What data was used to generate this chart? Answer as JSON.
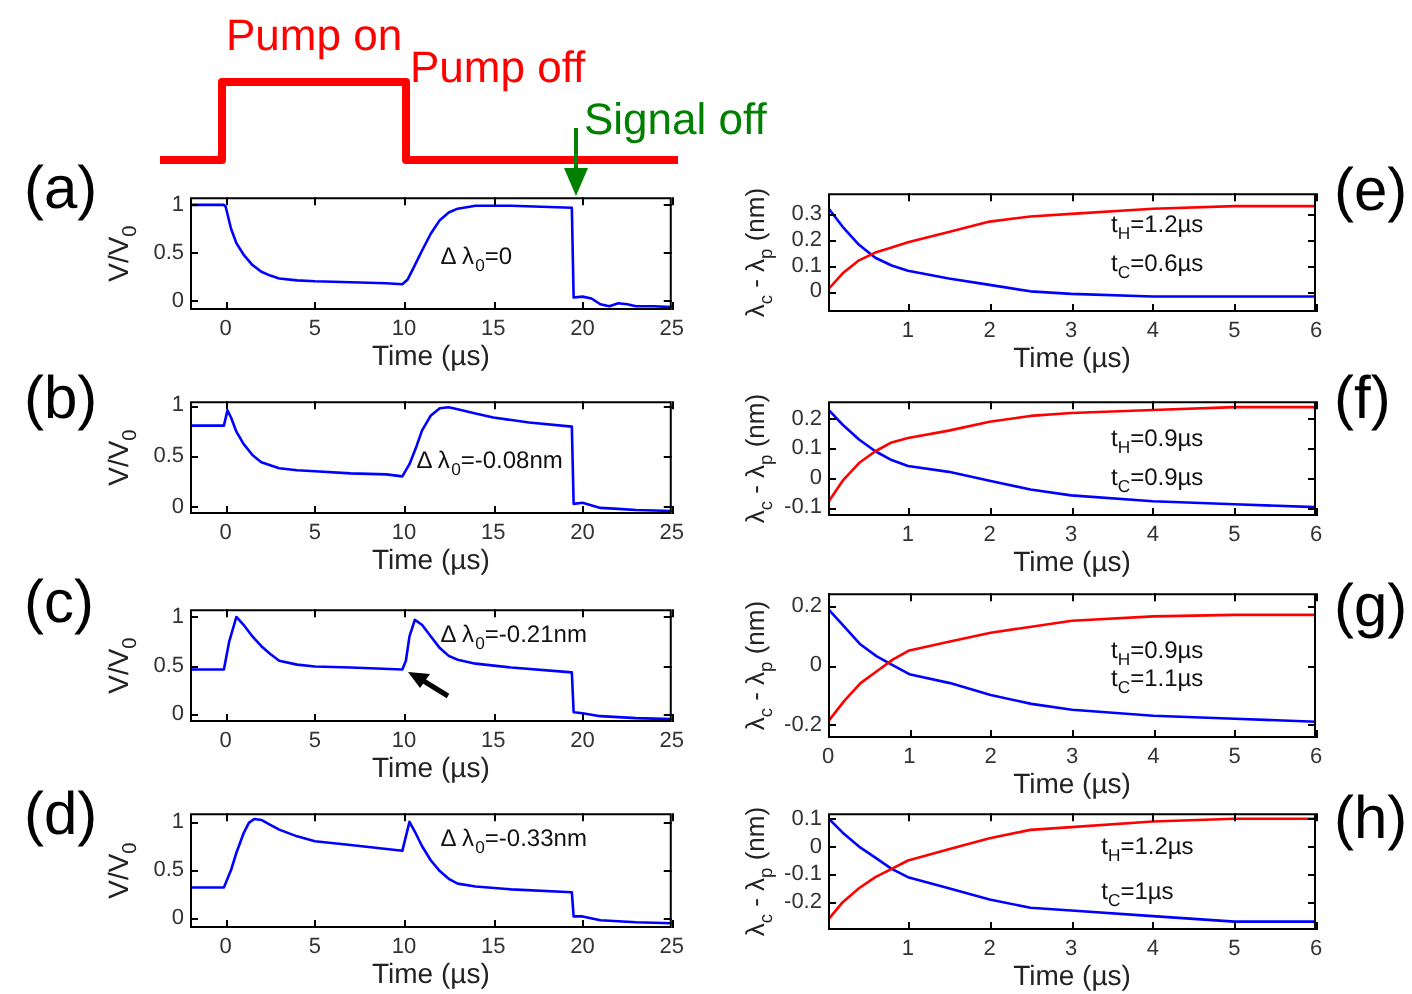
{
  "chart_data": [
    {
      "type": "other",
      "annotations": [
        "Pump on",
        "Pump off",
        "Signal off"
      ]
    },
    {
      "type": "line",
      "title": "(a)",
      "xlabel": "Time (µs)",
      "ylabel": "V/V$_{0}$",
      "xlim": [
        -2,
        25
      ],
      "ylim": [
        -0.1,
        1.08
      ],
      "xticks": [
        0,
        5,
        10,
        15,
        20,
        25
      ],
      "yticks": [
        0,
        0.5,
        1
      ],
      "x": [
        -2,
        -0.1,
        0,
        0.3,
        0.6,
        1,
        1.5,
        2,
        2.5,
        3,
        4,
        5,
        7,
        9,
        9.9,
        10.2,
        10.5,
        11,
        11.5,
        12,
        12.5,
        13,
        14,
        16,
        19.4,
        19.5,
        20,
        20.5,
        21,
        21.5,
        22,
        22.5,
        23,
        24,
        25
      ],
      "series": [
        {
          "color": "#0000ff",
          "values": [
            1,
            1,
            0.98,
            0.75,
            0.6,
            0.48,
            0.37,
            0.3,
            0.26,
            0.23,
            0.21,
            0.2,
            0.19,
            0.18,
            0.17,
            0.22,
            0.33,
            0.52,
            0.7,
            0.84,
            0.92,
            0.96,
            0.99,
            0.99,
            0.97,
            0.03,
            0.04,
            0.02,
            -0.04,
            -0.06,
            -0.03,
            -0.04,
            -0.06,
            -0.06,
            -0.07
          ]
        }
      ],
      "annotations": [
        "Δ λ$_{0}$=0"
      ]
    },
    {
      "type": "line",
      "title": "(b)",
      "xlabel": "Time (µs)",
      "ylabel": "V/V$_{0}$",
      "xlim": [
        -2,
        25
      ],
      "ylim": [
        -0.07,
        1.04
      ],
      "xticks": [
        0,
        5,
        10,
        15,
        20,
        25
      ],
      "yticks": [
        0,
        0.5,
        1
      ],
      "x": [
        -2,
        -0.1,
        0.1,
        0.3,
        0.6,
        1,
        1.5,
        2,
        3,
        4,
        5,
        7,
        9,
        9.9,
        10.3,
        10.7,
        11,
        11.5,
        12,
        12.5,
        13,
        14,
        15,
        17,
        19.4,
        19.5,
        20,
        21,
        22,
        23,
        25
      ],
      "series": [
        {
          "color": "#0000ff",
          "values": [
            0.8,
            0.8,
            0.95,
            0.88,
            0.74,
            0.62,
            0.51,
            0.44,
            0.38,
            0.36,
            0.35,
            0.33,
            0.32,
            0.3,
            0.42,
            0.6,
            0.75,
            0.9,
            0.97,
            0.98,
            0.96,
            0.92,
            0.88,
            0.83,
            0.79,
            0.03,
            0.04,
            -0.01,
            -0.02,
            -0.03,
            -0.04
          ]
        }
      ],
      "annotations": [
        "Δ λ$_{0}$=-0.08nm"
      ]
    },
    {
      "type": "line",
      "title": "(c)",
      "xlabel": "Time (µs)",
      "ylabel": "V/V$_{0}$",
      "xlim": [
        -2,
        25
      ],
      "ylim": [
        -0.08,
        1.08
      ],
      "xticks": [
        0,
        5,
        10,
        15,
        20,
        25
      ],
      "yticks": [
        0,
        0.5,
        1
      ],
      "x": [
        -2,
        -0.1,
        0.2,
        0.6,
        1,
        1.5,
        2,
        2.5,
        3,
        4,
        5,
        7,
        9.9,
        10.1,
        10.3,
        10.6,
        11,
        11.5,
        12,
        12.5,
        13,
        14,
        16,
        19.4,
        19.5,
        20,
        21,
        22,
        23,
        25
      ],
      "series": [
        {
          "color": "#0000ff",
          "values": [
            0.46,
            0.46,
            0.75,
            1.0,
            0.92,
            0.8,
            0.7,
            0.62,
            0.55,
            0.51,
            0.49,
            0.48,
            0.46,
            0.55,
            0.8,
            0.97,
            0.92,
            0.8,
            0.68,
            0.6,
            0.56,
            0.52,
            0.48,
            0.43,
            0.02,
            0.01,
            -0.02,
            -0.03,
            -0.04,
            -0.05
          ]
        }
      ],
      "annotations": [
        "Δ λ$_{0}$=-0.21nm"
      ]
    },
    {
      "type": "line",
      "title": "(d)",
      "xlabel": "Time (µs)",
      "ylabel": "V/V$_{0}$",
      "xlim": [
        -2,
        25
      ],
      "ylim": [
        -0.1,
        1.09
      ],
      "xticks": [
        0,
        5,
        10,
        15,
        20,
        25
      ],
      "yticks": [
        0,
        0.5,
        1
      ],
      "x": [
        -2,
        -0.1,
        0.3,
        0.6,
        1,
        1.3,
        1.6,
        2,
        2.5,
        3,
        4,
        5,
        7,
        9.9,
        10.1,
        10.3,
        10.6,
        11,
        11.5,
        12,
        12.5,
        13,
        14,
        16,
        19.4,
        19.5,
        20,
        21,
        23,
        25
      ],
      "series": [
        {
          "color": "#0000ff",
          "values": [
            0.32,
            0.32,
            0.5,
            0.68,
            0.88,
            0.99,
            1.03,
            1.02,
            0.97,
            0.92,
            0.85,
            0.8,
            0.76,
            0.7,
            0.85,
            1.0,
            0.9,
            0.75,
            0.6,
            0.49,
            0.41,
            0.36,
            0.33,
            0.3,
            0.27,
            0.02,
            0.02,
            -0.02,
            -0.04,
            -0.05
          ]
        }
      ],
      "annotations": [
        "Δ λ$_{0}$=-0.33nm"
      ]
    },
    {
      "type": "line",
      "title": "(e)",
      "xlabel": "Time (µs)",
      "ylabel": "λ$_{c}$ - λ$_{p}$ (nm)",
      "xlim": [
        0.02,
        6
      ],
      "ylim": [
        -0.08,
        0.38
      ],
      "xticks": [
        1,
        2,
        3,
        4,
        5,
        6
      ],
      "yticks": [
        0,
        0.1,
        0.2,
        0.3
      ],
      "x": [
        0.03,
        0.2,
        0.4,
        0.6,
        0.8,
        1,
        1.5,
        2,
        2.5,
        3,
        4,
        5,
        6
      ],
      "series": [
        {
          "color": "#ff0000",
          "values": [
            0.01,
            0.07,
            0.12,
            0.15,
            0.17,
            0.19,
            0.23,
            0.27,
            0.29,
            0.3,
            0.32,
            0.33,
            0.33
          ]
        },
        {
          "color": "#0000ff",
          "values": [
            0.32,
            0.25,
            0.18,
            0.13,
            0.1,
            0.08,
            0.05,
            0.025,
            0.0,
            -0.01,
            -0.02,
            -0.02,
            -0.02
          ]
        }
      ],
      "annotations": [
        "t$_{H}$=1.2µs",
        "t$_{C}$=0.6µs"
      ]
    },
    {
      "type": "line",
      "title": "(f)",
      "xlabel": "Time (µs)",
      "ylabel": "λ$_{c}$ - λ$_{p}$ (nm)",
      "xlim": [
        0.02,
        6
      ],
      "ylim": [
        -0.13,
        0.26
      ],
      "xticks": [
        1,
        2,
        3,
        4,
        5,
        6
      ],
      "yticks": [
        -0.1,
        0,
        0.1,
        0.2
      ],
      "x": [
        0.03,
        0.2,
        0.4,
        0.6,
        0.8,
        1,
        1.5,
        2,
        2.5,
        3,
        4,
        5,
        6
      ],
      "series": [
        {
          "color": "#ff0000",
          "values": [
            -0.08,
            -0.01,
            0.05,
            0.09,
            0.12,
            0.135,
            0.16,
            0.19,
            0.21,
            0.22,
            0.23,
            0.24,
            0.24
          ]
        },
        {
          "color": "#0000ff",
          "values": [
            0.23,
            0.18,
            0.13,
            0.09,
            0.06,
            0.04,
            0.02,
            -0.01,
            -0.04,
            -0.06,
            -0.08,
            -0.09,
            -0.1
          ]
        }
      ],
      "annotations": [
        "t$_{H}$=0.9µs",
        "t$_{C}$=0.9µs"
      ]
    },
    {
      "type": "line",
      "title": "(g)",
      "xlabel": "Time (µs)",
      "ylabel": "λ$_{c}$ - λ$_{p}$ (nm)",
      "xlim": [
        0,
        6
      ],
      "ylim": [
        -0.245,
        0.243
      ],
      "xticks": [
        0,
        1,
        2,
        3,
        4,
        5,
        6
      ],
      "yticks": [
        -0.2,
        0,
        0.2
      ],
      "x": [
        0,
        0.2,
        0.4,
        0.6,
        0.8,
        1,
        1.5,
        2,
        2.5,
        3,
        4,
        5,
        6
      ],
      "series": [
        {
          "color": "#ff0000",
          "values": [
            -0.19,
            -0.12,
            -0.06,
            -0.02,
            0.02,
            0.05,
            0.08,
            0.11,
            0.13,
            0.15,
            0.165,
            0.17,
            0.17
          ]
        },
        {
          "color": "#0000ff",
          "values": [
            0.19,
            0.13,
            0.07,
            0.03,
            0.0,
            -0.03,
            -0.06,
            -0.1,
            -0.13,
            -0.15,
            -0.17,
            -0.18,
            -0.19
          ]
        }
      ],
      "annotations": [
        "t$_{H}$=0.9µs",
        "t$_{C}$=1.1µs"
      ]
    },
    {
      "type": "line",
      "title": "(h)",
      "xlabel": "Time (µs)",
      "ylabel": "λ$_{c}$ - λ$_{p}$ (nm)",
      "xlim": [
        0.02,
        6
      ],
      "ylim": [
        -0.3,
        0.12
      ],
      "xticks": [
        1,
        2,
        3,
        4,
        5,
        6
      ],
      "yticks": [
        -0.2,
        -0.1,
        0,
        0.1
      ],
      "x": [
        0.03,
        0.2,
        0.4,
        0.6,
        0.8,
        1,
        1.5,
        2,
        2.5,
        3,
        4,
        5,
        6
      ],
      "series": [
        {
          "color": "#ff0000",
          "values": [
            -0.26,
            -0.2,
            -0.15,
            -0.11,
            -0.08,
            -0.05,
            -0.01,
            0.03,
            0.06,
            0.07,
            0.09,
            0.1,
            0.1
          ]
        },
        {
          "color": "#0000ff",
          "values": [
            0.1,
            0.05,
            0.0,
            -0.04,
            -0.08,
            -0.11,
            -0.15,
            -0.19,
            -0.22,
            -0.23,
            -0.25,
            -0.27,
            -0.27
          ]
        }
      ],
      "annotations": [
        "t$_{H}$=1.2µs",
        "t$_{C}$=1µs"
      ]
    }
  ]
}
